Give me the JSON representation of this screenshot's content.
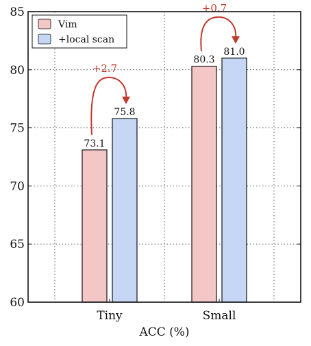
{
  "chart_data": {
    "type": "bar",
    "categories": [
      "Tiny",
      "Small"
    ],
    "series": [
      {
        "name": "Vim",
        "values": [
          73.1,
          80.3
        ],
        "labels": [
          "73.1",
          "80.3"
        ],
        "color": "#f4c7c7"
      },
      {
        "name": "+local scan",
        "values": [
          75.8,
          81.0
        ],
        "labels": [
          "75.8",
          "81.0"
        ],
        "color": "#c6d7f5"
      }
    ],
    "annotations": [
      "+2.7",
      "+0.7"
    ],
    "annotation_color": "#c0392b",
    "title": "",
    "xlabel": "ACC (%)",
    "ylabel": "",
    "ylim": [
      60,
      85
    ],
    "yticks": [
      60,
      65,
      70,
      75,
      80,
      85
    ],
    "ytick_labels": [
      "60",
      "65",
      "70",
      "75",
      "80",
      "85"
    ],
    "grid": true,
    "legend_position": "top-left"
  }
}
